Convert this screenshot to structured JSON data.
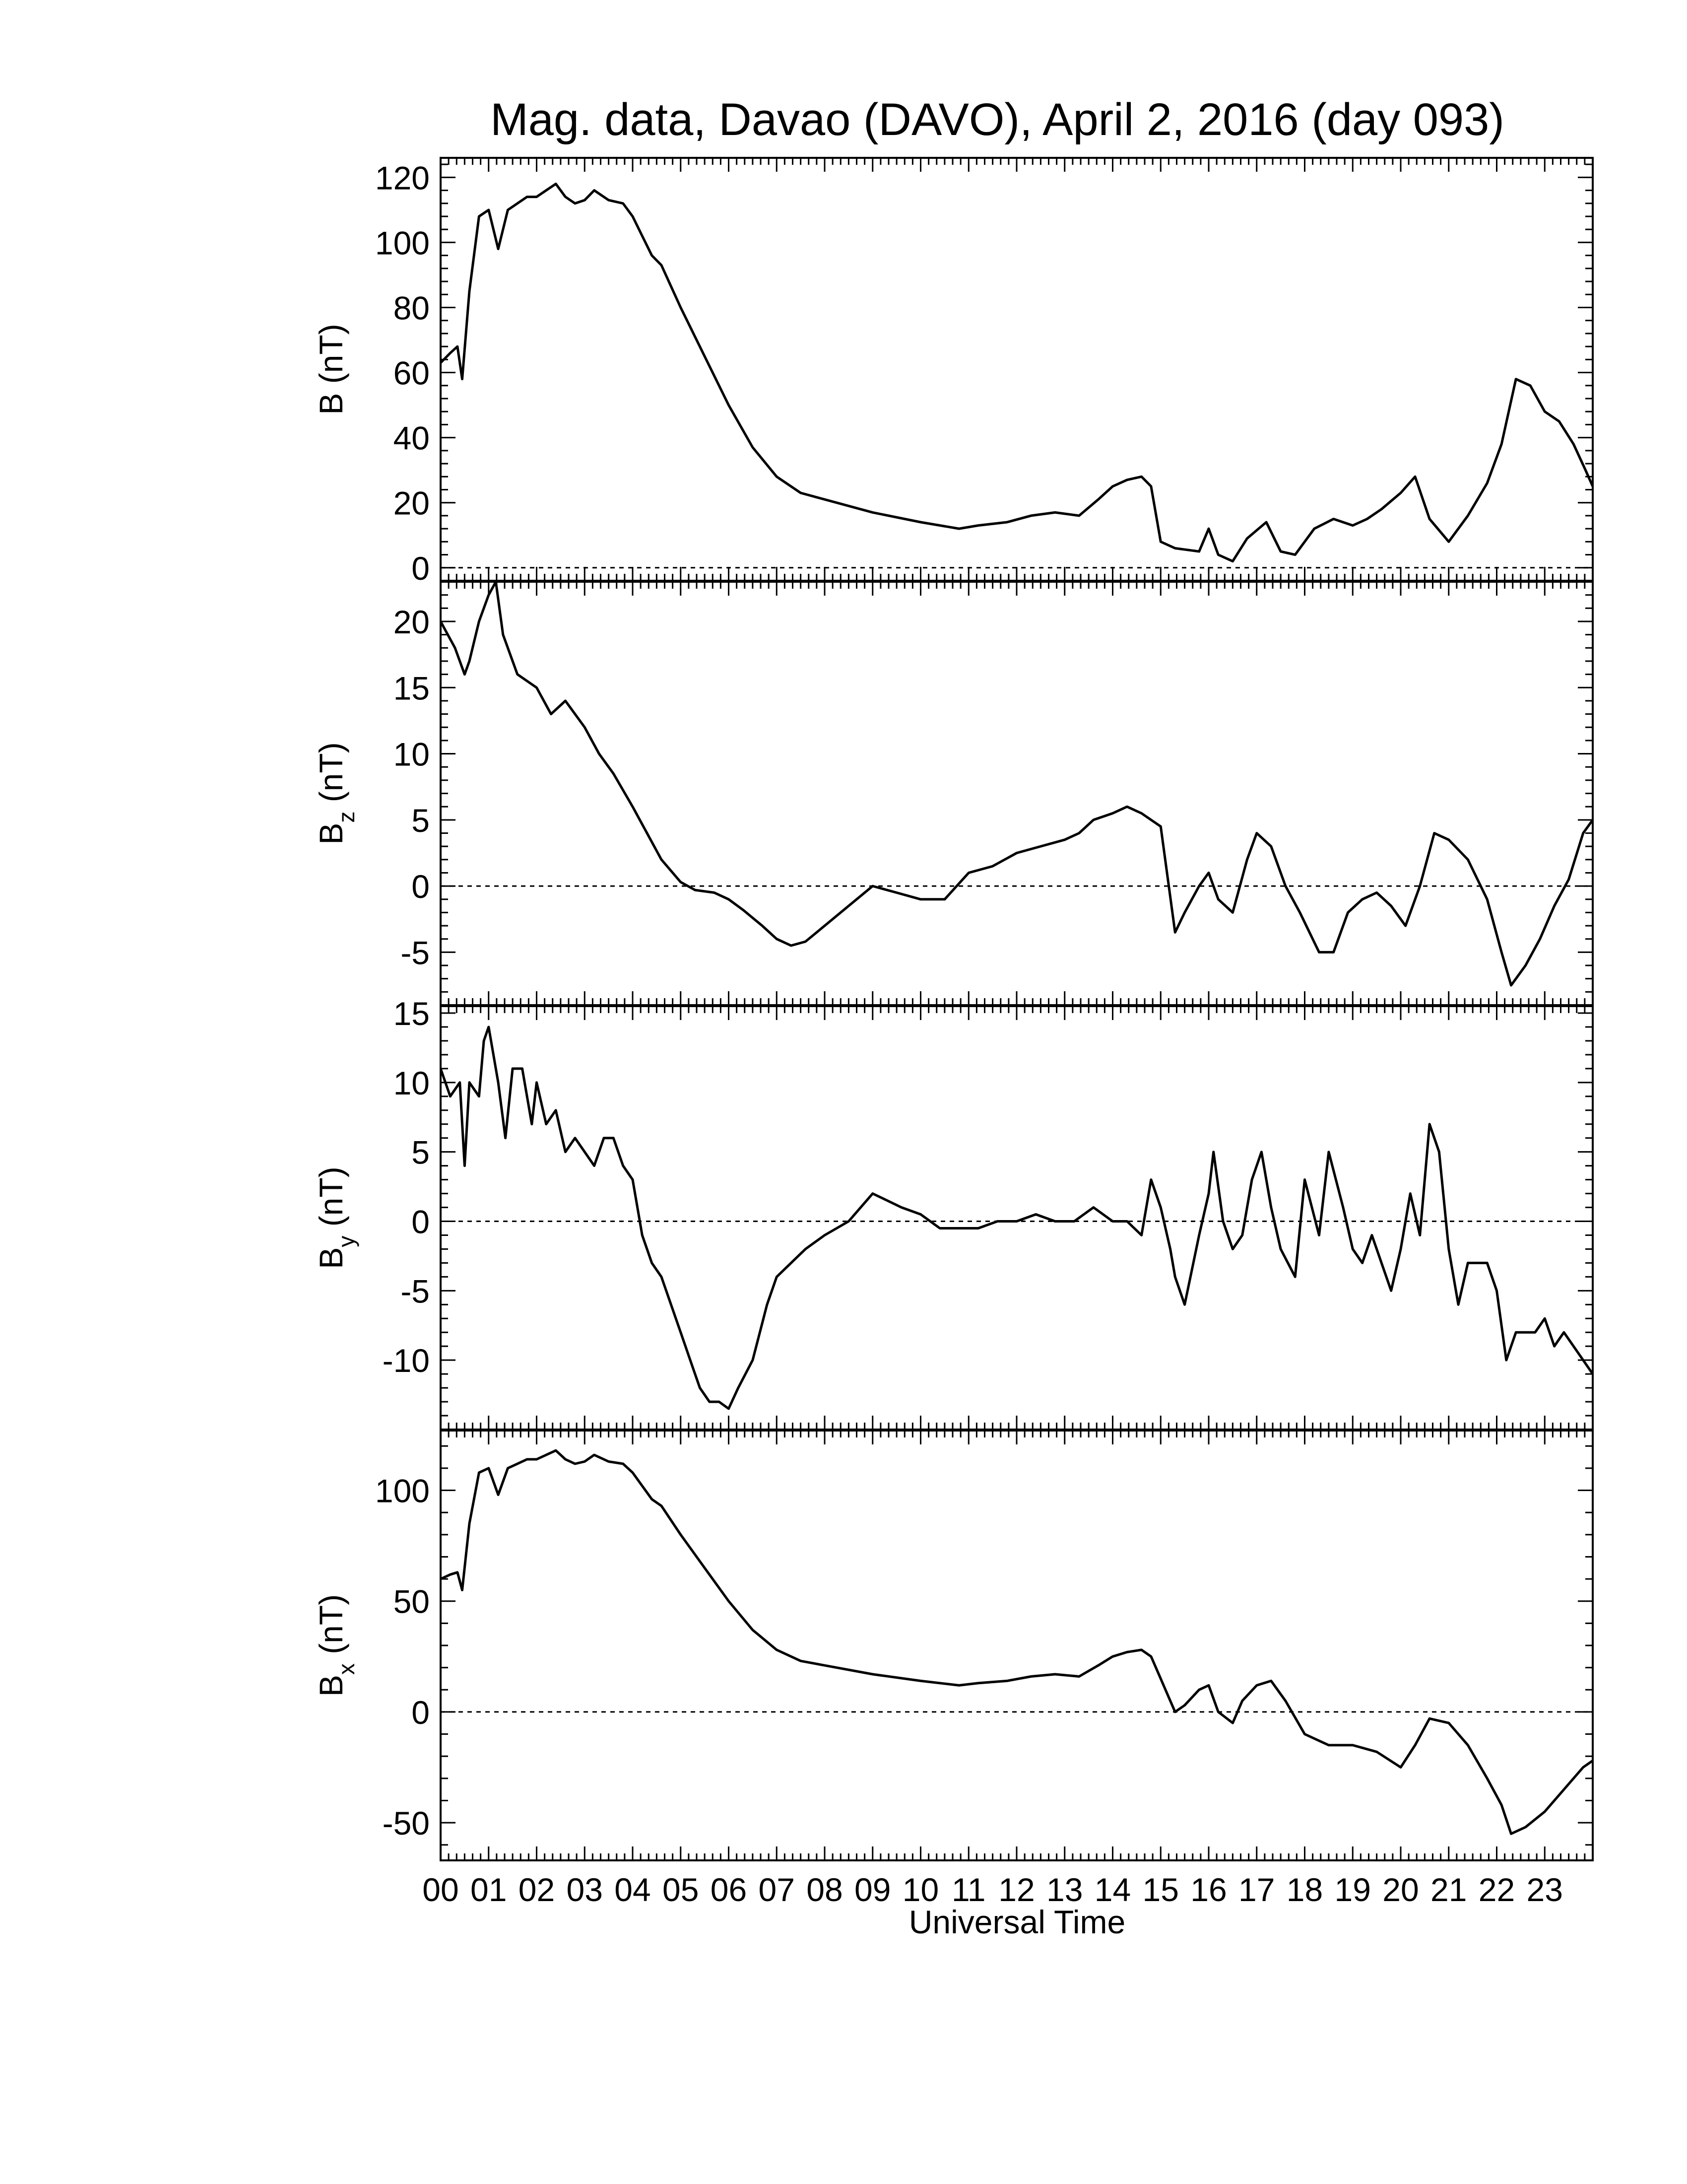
{
  "figure": {
    "title": "Mag. data, Davao (DAVO), April 2, 2016 (day 093)",
    "xlabel": "Universal Time",
    "hour_labels": [
      "00",
      "01",
      "02",
      "03",
      "04",
      "05",
      "06",
      "07",
      "08",
      "09",
      "10",
      "11",
      "12",
      "13",
      "14",
      "15",
      "16",
      "17",
      "18",
      "19",
      "20",
      "21",
      "22",
      "23"
    ]
  },
  "chart_data": [
    {
      "type": "line",
      "id": "B",
      "ylabel": {
        "main": "B",
        "sub": "",
        "unit": " (nT)"
      },
      "xlim": [
        0,
        24
      ],
      "ylim": [
        -4,
        126
      ],
      "yticks": [
        0,
        20,
        40,
        60,
        80,
        100,
        120
      ],
      "zero_line": true,
      "series": [
        {
          "x": [
            0.0,
            0.2,
            0.35,
            0.45,
            0.6,
            0.8,
            1.0,
            1.2,
            1.4,
            1.6,
            1.8,
            2.0,
            2.2,
            2.4,
            2.6,
            2.8,
            3.0,
            3.2,
            3.5,
            3.8,
            4.0,
            4.2,
            4.4,
            4.6,
            5.0,
            5.5,
            6.0,
            6.5,
            7.0,
            7.5,
            8.0,
            9.0,
            10.0,
            10.8,
            11.2,
            11.8,
            12.3,
            12.8,
            13.3,
            13.7,
            14.0,
            14.3,
            14.6,
            14.8,
            15.0,
            15.3,
            15.8,
            16.0,
            16.2,
            16.5,
            16.8,
            17.2,
            17.5,
            17.8,
            18.2,
            18.6,
            19.0,
            19.3,
            19.6,
            20.0,
            20.3,
            20.6,
            21.0,
            21.4,
            21.8,
            22.1,
            22.4,
            22.7,
            23.0,
            23.3,
            23.6,
            23.85,
            24.0
          ],
          "y": [
            63,
            66,
            68,
            58,
            85,
            108,
            110,
            98,
            110,
            112,
            114,
            114,
            116,
            118,
            114,
            112,
            113,
            116,
            113,
            112,
            108,
            102,
            96,
            93,
            80,
            65,
            50,
            37,
            28,
            23,
            21,
            17,
            14,
            12,
            13,
            14,
            16,
            17,
            16,
            21,
            25,
            27,
            28,
            25,
            8,
            6,
            5,
            12,
            4,
            2,
            9,
            14,
            5,
            4,
            12,
            15,
            13,
            15,
            18,
            23,
            28,
            15,
            8,
            16,
            26,
            38,
            58,
            56,
            48,
            45,
            38,
            30,
            25
          ]
        }
      ]
    },
    {
      "type": "line",
      "id": "Bz",
      "ylabel": {
        "main": "B",
        "sub": "z",
        "unit": " (nT)"
      },
      "xlim": [
        0,
        24
      ],
      "ylim": [
        -9,
        23
      ],
      "yticks": [
        -5,
        0,
        5,
        10,
        15,
        20
      ],
      "zero_line": true,
      "series": [
        {
          "x": [
            0.0,
            0.3,
            0.5,
            0.6,
            0.8,
            1.0,
            1.15,
            1.3,
            1.6,
            2.0,
            2.3,
            2.6,
            3.0,
            3.3,
            3.6,
            4.0,
            4.3,
            4.6,
            5.0,
            5.3,
            5.7,
            6.0,
            6.3,
            6.7,
            7.0,
            7.3,
            7.6,
            8.0,
            8.5,
            9.0,
            9.5,
            10.0,
            10.5,
            11.0,
            11.5,
            12.0,
            12.5,
            13.0,
            13.3,
            13.6,
            14.0,
            14.3,
            14.6,
            15.0,
            15.3,
            15.5,
            15.8,
            16.0,
            16.2,
            16.5,
            16.8,
            17.0,
            17.3,
            17.6,
            17.9,
            18.3,
            18.6,
            18.9,
            19.2,
            19.5,
            19.8,
            20.1,
            20.4,
            20.7,
            21.0,
            21.4,
            21.8,
            22.1,
            22.3,
            22.6,
            22.9,
            23.2,
            23.5,
            23.8,
            24.0
          ],
          "y": [
            20,
            18,
            16,
            17,
            20,
            22,
            23,
            19,
            16,
            15,
            13,
            14,
            12,
            10,
            8.5,
            6,
            4,
            2,
            0.3,
            -0.3,
            -0.5,
            -1,
            -1.8,
            -3,
            -4,
            -4.5,
            -4.2,
            -3,
            -1.5,
            0,
            -0.5,
            -1,
            -1,
            1,
            1.5,
            2.5,
            3,
            3.5,
            4,
            5,
            5.5,
            6,
            5.5,
            4.5,
            -3.5,
            -2,
            0,
            1,
            -1,
            -2,
            2,
            4,
            3,
            0,
            -2,
            -5,
            -5,
            -2,
            -1,
            -0.5,
            -1.5,
            -3,
            0,
            4,
            3.5,
            2,
            -1,
            -5,
            -7.5,
            -6,
            -4,
            -1.5,
            0.5,
            4,
            5
          ]
        }
      ]
    },
    {
      "type": "line",
      "id": "By",
      "ylabel": {
        "main": "B",
        "sub": "y",
        "unit": " (nT)"
      },
      "xlim": [
        0,
        24
      ],
      "ylim": [
        -15,
        15.5
      ],
      "yticks": [
        -10,
        -5,
        0,
        5,
        10,
        15
      ],
      "zero_line": true,
      "series": [
        {
          "x": [
            0.0,
            0.2,
            0.4,
            0.5,
            0.6,
            0.8,
            0.9,
            1.0,
            1.2,
            1.35,
            1.5,
            1.7,
            1.9,
            2.0,
            2.2,
            2.4,
            2.6,
            2.8,
            3.0,
            3.2,
            3.4,
            3.6,
            3.8,
            4.0,
            4.2,
            4.4,
            4.6,
            4.8,
            5.0,
            5.2,
            5.4,
            5.6,
            5.8,
            6.0,
            6.2,
            6.5,
            6.8,
            7.0,
            7.3,
            7.6,
            8.0,
            8.5,
            9.0,
            9.3,
            9.6,
            10.0,
            10.4,
            10.8,
            11.2,
            11.6,
            12.0,
            12.4,
            12.8,
            13.2,
            13.6,
            14.0,
            14.3,
            14.6,
            14.8,
            15.0,
            15.2,
            15.3,
            15.5,
            15.8,
            16.0,
            16.1,
            16.3,
            16.5,
            16.7,
            16.9,
            17.1,
            17.3,
            17.5,
            17.8,
            18.0,
            18.3,
            18.5,
            18.8,
            19.0,
            19.2,
            19.4,
            19.6,
            19.8,
            20.0,
            20.2,
            20.4,
            20.6,
            20.8,
            21.0,
            21.2,
            21.4,
            21.6,
            21.8,
            22.0,
            22.2,
            22.4,
            22.6,
            22.8,
            23.0,
            23.2,
            23.4,
            23.6,
            23.8,
            24.0
          ],
          "y": [
            11,
            9,
            10,
            4,
            10,
            9,
            13,
            14,
            10,
            6,
            11,
            11,
            7,
            10,
            7,
            8,
            5,
            6,
            5,
            4,
            6,
            6,
            4,
            3,
            -1,
            -3,
            -4,
            -6,
            -8,
            -10,
            -12,
            -13,
            -13,
            -13.5,
            -12,
            -10,
            -6,
            -4,
            -3,
            -2,
            -1,
            0,
            2,
            1.5,
            1,
            0.5,
            -0.5,
            -0.5,
            -0.5,
            0,
            0,
            0.5,
            0,
            0,
            1,
            0,
            0,
            -1,
            3,
            1,
            -2,
            -4,
            -6,
            -1,
            2,
            5,
            0,
            -2,
            -1,
            3,
            5,
            1,
            -2,
            -4,
            3,
            -1,
            5,
            1,
            -2,
            -3,
            -1,
            -3,
            -5,
            -2,
            2,
            -1,
            7,
            5,
            -2,
            -6,
            -3,
            -3,
            -3,
            -5,
            -10,
            -8,
            -8,
            -8,
            -7,
            -9,
            -8,
            -9,
            -10,
            -11
          ]
        }
      ]
    },
    {
      "type": "line",
      "id": "Bx",
      "ylabel": {
        "main": "B",
        "sub": "x",
        "unit": " (nT)"
      },
      "xlim": [
        0,
        24
      ],
      "ylim": [
        -67,
        127
      ],
      "yticks": [
        -50,
        0,
        50,
        100
      ],
      "zero_line": true,
      "series": [
        {
          "x": [
            0.0,
            0.2,
            0.35,
            0.45,
            0.6,
            0.8,
            1.0,
            1.2,
            1.4,
            1.6,
            1.8,
            2.0,
            2.2,
            2.4,
            2.6,
            2.8,
            3.0,
            3.2,
            3.5,
            3.8,
            4.0,
            4.2,
            4.4,
            4.6,
            5.0,
            5.5,
            6.0,
            6.5,
            7.0,
            7.5,
            8.0,
            9.0,
            10.0,
            10.8,
            11.2,
            11.8,
            12.3,
            12.8,
            13.3,
            13.7,
            14.0,
            14.3,
            14.6,
            14.8,
            15.0,
            15.2,
            15.3,
            15.5,
            15.8,
            16.0,
            16.2,
            16.5,
            16.7,
            17.0,
            17.3,
            17.6,
            18.0,
            18.5,
            19.0,
            19.5,
            20.0,
            20.3,
            20.6,
            21.0,
            21.4,
            21.8,
            22.1,
            22.3,
            22.6,
            23.0,
            23.4,
            23.8,
            24.0
          ],
          "y": [
            60,
            62,
            63,
            55,
            85,
            108,
            110,
            98,
            110,
            112,
            114,
            114,
            116,
            118,
            114,
            112,
            113,
            116,
            113,
            112,
            108,
            102,
            96,
            93,
            80,
            65,
            50,
            37,
            28,
            23,
            21,
            17,
            14,
            12,
            13,
            14,
            16,
            17,
            16,
            21,
            25,
            27,
            28,
            25,
            15,
            5,
            0,
            3,
            10,
            12,
            0,
            -5,
            5,
            12,
            14,
            5,
            -10,
            -15,
            -15,
            -18,
            -25,
            -15,
            -3,
            -5,
            -15,
            -30,
            -42,
            -55,
            -52,
            -45,
            -35,
            -25,
            -22
          ]
        }
      ]
    }
  ]
}
